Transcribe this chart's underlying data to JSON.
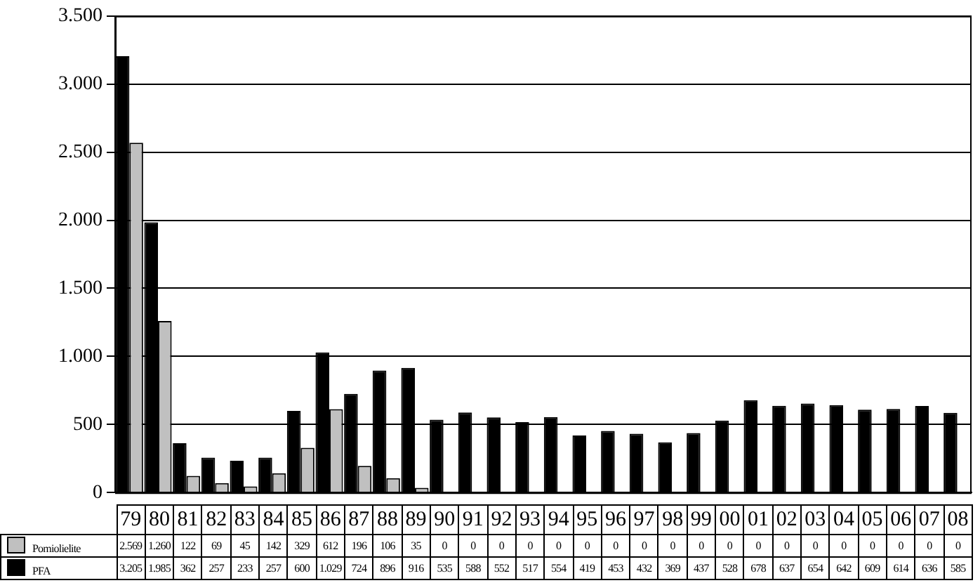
{
  "chart_data": {
    "type": "bar",
    "categories": [
      "79",
      "80",
      "81",
      "82",
      "83",
      "84",
      "85",
      "86",
      "87",
      "88",
      "89",
      "90",
      "91",
      "92",
      "93",
      "94",
      "95",
      "96",
      "97",
      "98",
      "99",
      "00",
      "01",
      "02",
      "03",
      "04",
      "05",
      "06",
      "07",
      "08"
    ],
    "series": [
      {
        "name": "Pomiolielite",
        "color": "#c0c0c0",
        "values": [
          2569,
          1260,
          122,
          69,
          45,
          142,
          329,
          612,
          196,
          106,
          35,
          0,
          0,
          0,
          0,
          0,
          0,
          0,
          0,
          0,
          0,
          0,
          0,
          0,
          0,
          0,
          0,
          0,
          0,
          0
        ],
        "value_labels": [
          "2.569",
          "1.260",
          "122",
          "69",
          "45",
          "142",
          "329",
          "612",
          "196",
          "106",
          "35",
          "0",
          "0",
          "0",
          "0",
          "0",
          "0",
          "0",
          "0",
          "0",
          "0",
          "0",
          "0",
          "0",
          "0",
          "0",
          "0",
          "0",
          "0",
          "0"
        ]
      },
      {
        "name": "PFA",
        "color": "#000000",
        "values": [
          3205,
          1985,
          362,
          257,
          233,
          257,
          600,
          1029,
          724,
          896,
          916,
          535,
          588,
          552,
          517,
          554,
          419,
          453,
          432,
          369,
          437,
          528,
          678,
          637,
          654,
          642,
          609,
          614,
          636,
          585
        ],
        "value_labels": [
          "3.205",
          "1.985",
          "362",
          "257",
          "233",
          "257",
          "600",
          "1.029",
          "724",
          "896",
          "916",
          "535",
          "588",
          "552",
          "517",
          "554",
          "419",
          "453",
          "432",
          "369",
          "437",
          "528",
          "678",
          "637",
          "654",
          "642",
          "609",
          "614",
          "636",
          "585"
        ]
      }
    ],
    "ylim": [
      0,
      3500
    ],
    "yticks": [
      {
        "value": 0,
        "label": "0"
      },
      {
        "value": 500,
        "label": "500"
      },
      {
        "value": 1000,
        "label": "1.000"
      },
      {
        "value": 1500,
        "label": "1.500"
      },
      {
        "value": 2000,
        "label": "2.000"
      },
      {
        "value": 2500,
        "label": "2.500"
      },
      {
        "value": 3000,
        "label": "3.000"
      },
      {
        "value": 3500,
        "label": "3.500"
      }
    ],
    "grid": "y",
    "legend": "bottom left"
  }
}
